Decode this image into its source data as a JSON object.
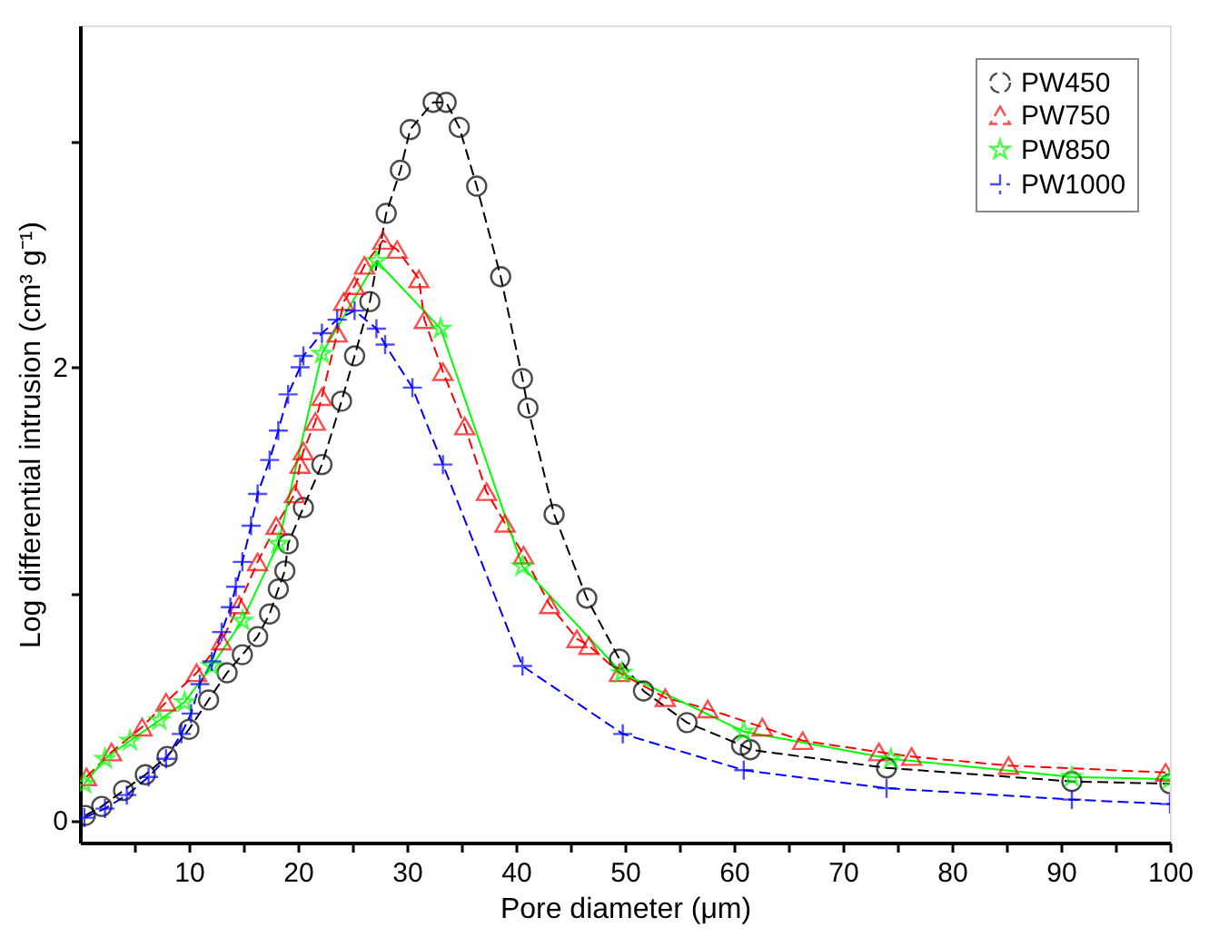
{
  "chart_data": {
    "type": "line",
    "xlabel": "Pore diameter (μm)",
    "ylabel": "Log differential intrusion (cm³ g⁻¹)",
    "xlim": [
      0,
      100
    ],
    "ylim": [
      -0.1,
      3.51
    ],
    "xticks": [
      {
        "value": 5,
        "label": null
      },
      10,
      {
        "value": 15,
        "label": null
      },
      20,
      {
        "value": 25,
        "label": null
      },
      30,
      {
        "value": 35,
        "label": null
      },
      40,
      {
        "value": 45,
        "label": null
      },
      50,
      {
        "value": 55,
        "label": null
      },
      60,
      {
        "value": 65,
        "label": null
      },
      70,
      {
        "value": 75,
        "label": null
      },
      80,
      {
        "value": 85,
        "label": null
      },
      90,
      {
        "value": 95,
        "label": null
      },
      100
    ],
    "yticks": [
      0,
      {
        "value": 1,
        "label": null
      },
      2,
      {
        "value": 3,
        "label": null
      }
    ],
    "grid": false,
    "legend": "top right",
    "series": [
      {
        "name": "PW450",
        "color": "#000000",
        "marker": "circle",
        "line_style": "dashed",
        "x": [
          0.5,
          2,
          4,
          6,
          8,
          10,
          11.8,
          13.5,
          14.9,
          16.3,
          17.4,
          18.2,
          18.8,
          19.1,
          20.5,
          22.2,
          24,
          25.2,
          26.6,
          28.1,
          29.4,
          30.3,
          32.4,
          33.6,
          34.8,
          36.4,
          38.6,
          40.6,
          41.1,
          43.5,
          46.5,
          49.5,
          51.7,
          55.7,
          60.7,
          61.5,
          74,
          91,
          100
        ],
        "values": [
          0.02,
          0.06,
          0.13,
          0.2,
          0.28,
          0.4,
          0.53,
          0.65,
          0.73,
          0.81,
          0.91,
          1.02,
          1.1,
          1.22,
          1.38,
          1.57,
          1.85,
          2.05,
          2.29,
          2.68,
          2.87,
          3.05,
          3.17,
          3.17,
          3.06,
          2.8,
          2.4,
          1.95,
          1.82,
          1.35,
          0.98,
          0.71,
          0.57,
          0.43,
          0.33,
          0.31,
          0.23,
          0.17,
          0.16
        ]
      },
      {
        "name": "PW750",
        "color": "#ff0000",
        "marker": "triangle",
        "line_style": "dashed",
        "x": [
          0.6,
          2.9,
          5.7,
          7.9,
          10.7,
          13,
          14.6,
          16.3,
          18,
          19.7,
          20.2,
          20.5,
          21.6,
          22.2,
          23.6,
          24.2,
          25.2,
          26.1,
          27.8,
          29.1,
          31.1,
          31.6,
          33.3,
          35.3,
          37.3,
          39,
          40.7,
          43.1,
          45.6,
          46.7,
          49.5,
          53.7,
          57.6,
          62.6,
          66.3,
          73.3,
          76.3,
          85.2,
          99.6
        ],
        "values": [
          0.19,
          0.3,
          0.41,
          0.52,
          0.65,
          0.79,
          0.95,
          1.14,
          1.3,
          1.44,
          1.57,
          1.63,
          1.76,
          1.87,
          2.15,
          2.29,
          2.36,
          2.45,
          2.56,
          2.52,
          2.39,
          2.21,
          1.98,
          1.74,
          1.45,
          1.31,
          1.17,
          0.95,
          0.8,
          0.77,
          0.65,
          0.54,
          0.49,
          0.41,
          0.35,
          0.3,
          0.28,
          0.24,
          0.21
        ]
      },
      {
        "name": "PW850",
        "color": "#00ff00",
        "marker": "star",
        "line_style": "solid",
        "x": [
          0.4,
          2.3,
          4.6,
          7.3,
          9.6,
          12.1,
          14.9,
          18.2,
          22.2,
          27.2,
          33.1,
          40.6,
          49.7,
          60.9,
          74.4,
          91,
          100
        ],
        "values": [
          0.16,
          0.27,
          0.35,
          0.44,
          0.52,
          0.68,
          0.88,
          1.22,
          2.06,
          2.47,
          2.17,
          1.12,
          0.65,
          0.39,
          0.27,
          0.19,
          0.18
        ]
      },
      {
        "name": "PW1000",
        "color": "#0000ff",
        "marker": "cross",
        "line_style": "dashed",
        "x": [
          0.4,
          2.3,
          4.3,
          6.3,
          7.9,
          9.3,
          10.2,
          11,
          12.1,
          13,
          13.8,
          14.3,
          14.9,
          15.7,
          16.3,
          17.4,
          18.2,
          19.1,
          20.2,
          20.5,
          22.2,
          23.6,
          25.2,
          27.2,
          28,
          30.5,
          33.3,
          40.6,
          49.8,
          60.9,
          74,
          91,
          100
        ],
        "values": [
          0.01,
          0.05,
          0.11,
          0.19,
          0.27,
          0.38,
          0.47,
          0.6,
          0.7,
          0.83,
          0.94,
          1.03,
          1.14,
          1.3,
          1.44,
          1.59,
          1.72,
          1.88,
          2.0,
          2.05,
          2.15,
          2.21,
          2.25,
          2.17,
          2.1,
          1.91,
          1.57,
          0.68,
          0.38,
          0.22,
          0.14,
          0.09,
          0.07
        ]
      }
    ]
  }
}
